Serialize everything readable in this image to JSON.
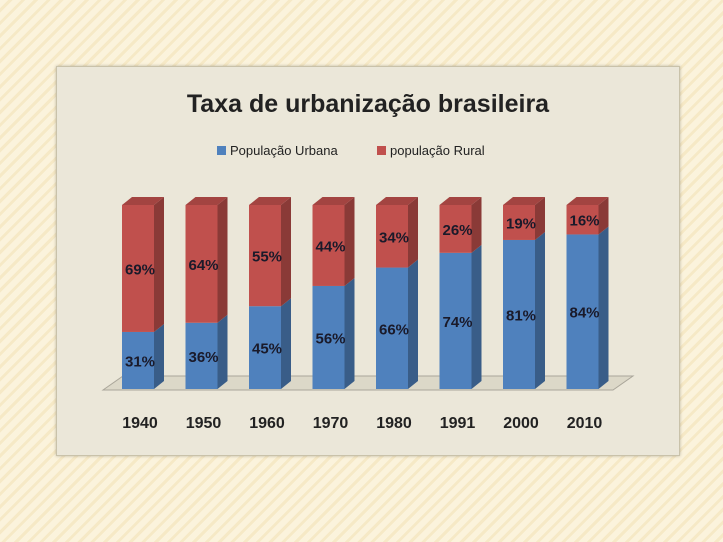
{
  "chart_data": {
    "type": "bar",
    "stacked": true,
    "style": "3d-column",
    "title": "Taxa de urbanização brasileira",
    "categories": [
      "1940",
      "1950",
      "1960",
      "1970",
      "1980",
      "1991",
      "2000",
      "2010"
    ],
    "series": [
      {
        "name": "População Urbana",
        "color": "#4f81bd",
        "values": [
          31,
          36,
          45,
          56,
          66,
          74,
          81,
          84
        ],
        "labels": [
          "31%",
          "36%",
          "45%",
          "56%",
          "66%",
          "74%",
          "81%",
          "84%"
        ]
      },
      {
        "name": "população Rural",
        "color": "#c0504d",
        "values": [
          69,
          64,
          55,
          44,
          34,
          26,
          19,
          16
        ],
        "labels": [
          "69%",
          "64%",
          "55%",
          "44%",
          "34%",
          "26%",
          "19%",
          "16%"
        ]
      }
    ],
    "ylim": [
      0,
      100
    ],
    "legend": "top",
    "grid": false
  }
}
